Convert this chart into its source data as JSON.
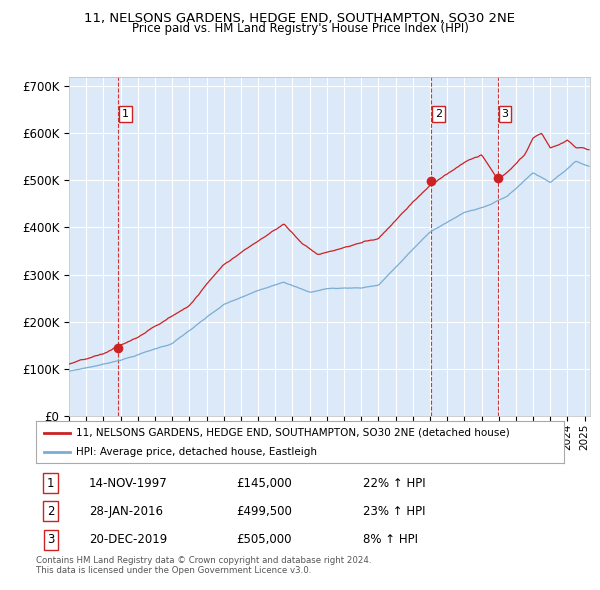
{
  "title_line1": "11, NELSONS GARDENS, HEDGE END, SOUTHAMPTON, SO30 2NE",
  "title_line2": "Price paid vs. HM Land Registry's House Price Index (HPI)",
  "legend_red": "11, NELSONS GARDENS, HEDGE END, SOUTHAMPTON, SO30 2NE (detached house)",
  "legend_blue": "HPI: Average price, detached house, Eastleigh",
  "transactions": [
    {
      "num": 1,
      "date": "14-NOV-1997",
      "price": "£145,000",
      "hpi_pct": "22% ↑ HPI"
    },
    {
      "num": 2,
      "date": "28-JAN-2016",
      "price": "£499,500",
      "hpi_pct": "23% ↑ HPI"
    },
    {
      "num": 3,
      "date": "20-DEC-2019",
      "price": "£505,000",
      "hpi_pct": "8% ↑ HPI"
    }
  ],
  "transaction_dates_decimal": [
    1997.87,
    2016.08,
    2019.97
  ],
  "transaction_prices": [
    145000,
    499500,
    505000
  ],
  "yticks": [
    0,
    100000,
    200000,
    300000,
    400000,
    500000,
    600000,
    700000
  ],
  "ytick_labels": [
    "£0",
    "£100K",
    "£200K",
    "£300K",
    "£400K",
    "£500K",
    "£600K",
    "£700K"
  ],
  "xmin": 1995.0,
  "xmax": 2025.3,
  "ymin": 0,
  "ymax": 720000,
  "plot_bg_color": "#dce9f8",
  "red_line_color": "#cc2222",
  "blue_line_color": "#7aadd4",
  "vline_color": "#cc2222",
  "footer": "Contains HM Land Registry data © Crown copyright and database right 2024.\nThis data is licensed under the Open Government Licence v3.0."
}
